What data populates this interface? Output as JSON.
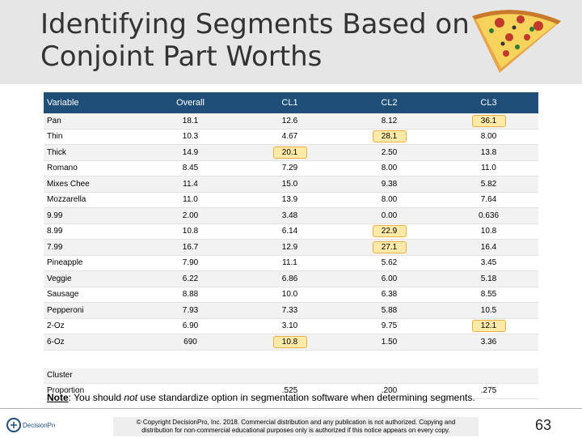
{
  "title": {
    "line1": "Identifying Segments Based on",
    "line2": "Conjoint Part Worths"
  },
  "table": {
    "headers": [
      "Variable",
      "Overall",
      "CL1",
      "CL2",
      "CL3"
    ],
    "rows": [
      {
        "label": "Pan",
        "values": [
          "18.1",
          "12.6",
          "8.12",
          "36.1"
        ],
        "highlight": [
          false,
          false,
          false,
          true
        ]
      },
      {
        "label": "Thin",
        "values": [
          "10.3",
          "4.67",
          "28.1",
          "8.00"
        ],
        "highlight": [
          false,
          false,
          true,
          false
        ]
      },
      {
        "label": "Thick",
        "values": [
          "14.9",
          "20.1",
          "2.50",
          "13.8"
        ],
        "highlight": [
          false,
          true,
          false,
          false
        ]
      },
      {
        "label": "Romano",
        "values": [
          "8.45",
          "7.29",
          "8.00",
          "11.0"
        ],
        "highlight": [
          false,
          false,
          false,
          false
        ]
      },
      {
        "label": "Mixes Chee",
        "values": [
          "11.4",
          "15.0",
          "9.38",
          "5.82"
        ],
        "highlight": [
          false,
          false,
          false,
          false
        ]
      },
      {
        "label": "Mozzarella",
        "values": [
          "11.0",
          "13.9",
          "8.00",
          "7.64"
        ],
        "highlight": [
          false,
          false,
          false,
          false
        ]
      },
      {
        "label": "9.99",
        "values": [
          "2.00",
          "3.48",
          "0.00",
          "0.636"
        ],
        "highlight": [
          false,
          false,
          false,
          false
        ]
      },
      {
        "label": "8.99",
        "values": [
          "10.8",
          "6.14",
          "22.9",
          "10.8"
        ],
        "highlight": [
          false,
          false,
          true,
          false
        ]
      },
      {
        "label": "7.99",
        "values": [
          "16.7",
          "12.9",
          "27.1",
          "16.4"
        ],
        "highlight": [
          false,
          false,
          true,
          false
        ]
      },
      {
        "label": "Pineapple",
        "values": [
          "7.90",
          "11.1",
          "5.62",
          "3.45"
        ],
        "highlight": [
          false,
          false,
          false,
          false
        ]
      },
      {
        "label": "Veggie",
        "values": [
          "6.22",
          "6.86",
          "6.00",
          "5.18"
        ],
        "highlight": [
          false,
          false,
          false,
          false
        ]
      },
      {
        "label": "Sausage",
        "values": [
          "8.88",
          "10.0",
          "6.38",
          "8.55"
        ],
        "highlight": [
          false,
          false,
          false,
          false
        ]
      },
      {
        "label": "Pepperoni",
        "values": [
          "7.93",
          "7.33",
          "5.88",
          "10.5"
        ],
        "highlight": [
          false,
          false,
          false,
          false
        ]
      },
      {
        "label": "2-Oz",
        "values": [
          "6.90",
          "3.10",
          "9.75",
          "12.1"
        ],
        "highlight": [
          false,
          false,
          false,
          true
        ]
      },
      {
        "label": "6-Oz",
        "values": [
          "690",
          "10.8",
          "1.50",
          "3.36"
        ],
        "highlight": [
          false,
          true,
          false,
          false
        ]
      }
    ],
    "cluster_label": "Cluster",
    "proportion": {
      "label": "Proportion",
      "values": [
        "",
        ".525",
        ".200",
        ".275"
      ]
    }
  },
  "note": {
    "lead": "Note",
    "text_before": ": You should ",
    "emph": "not",
    "text_after": " use standardize option in segmentation software when determining segments."
  },
  "footer": {
    "logo_text": "DecisionPro",
    "copyright_line1": "© Copyright DecisionPro, Inc. 2018. Commercial distribution and any publication is not authorized. Copying and",
    "copyright_line2": "distribution for non-commercial educational purposes only is authorized if this notice appears on every copy.",
    "page_number": "63"
  },
  "colors": {
    "header_bg": "#1f4e79",
    "highlight_bg": "#fde9a8",
    "highlight_border": "#f0b040",
    "title_band": "#e6e6e6"
  }
}
